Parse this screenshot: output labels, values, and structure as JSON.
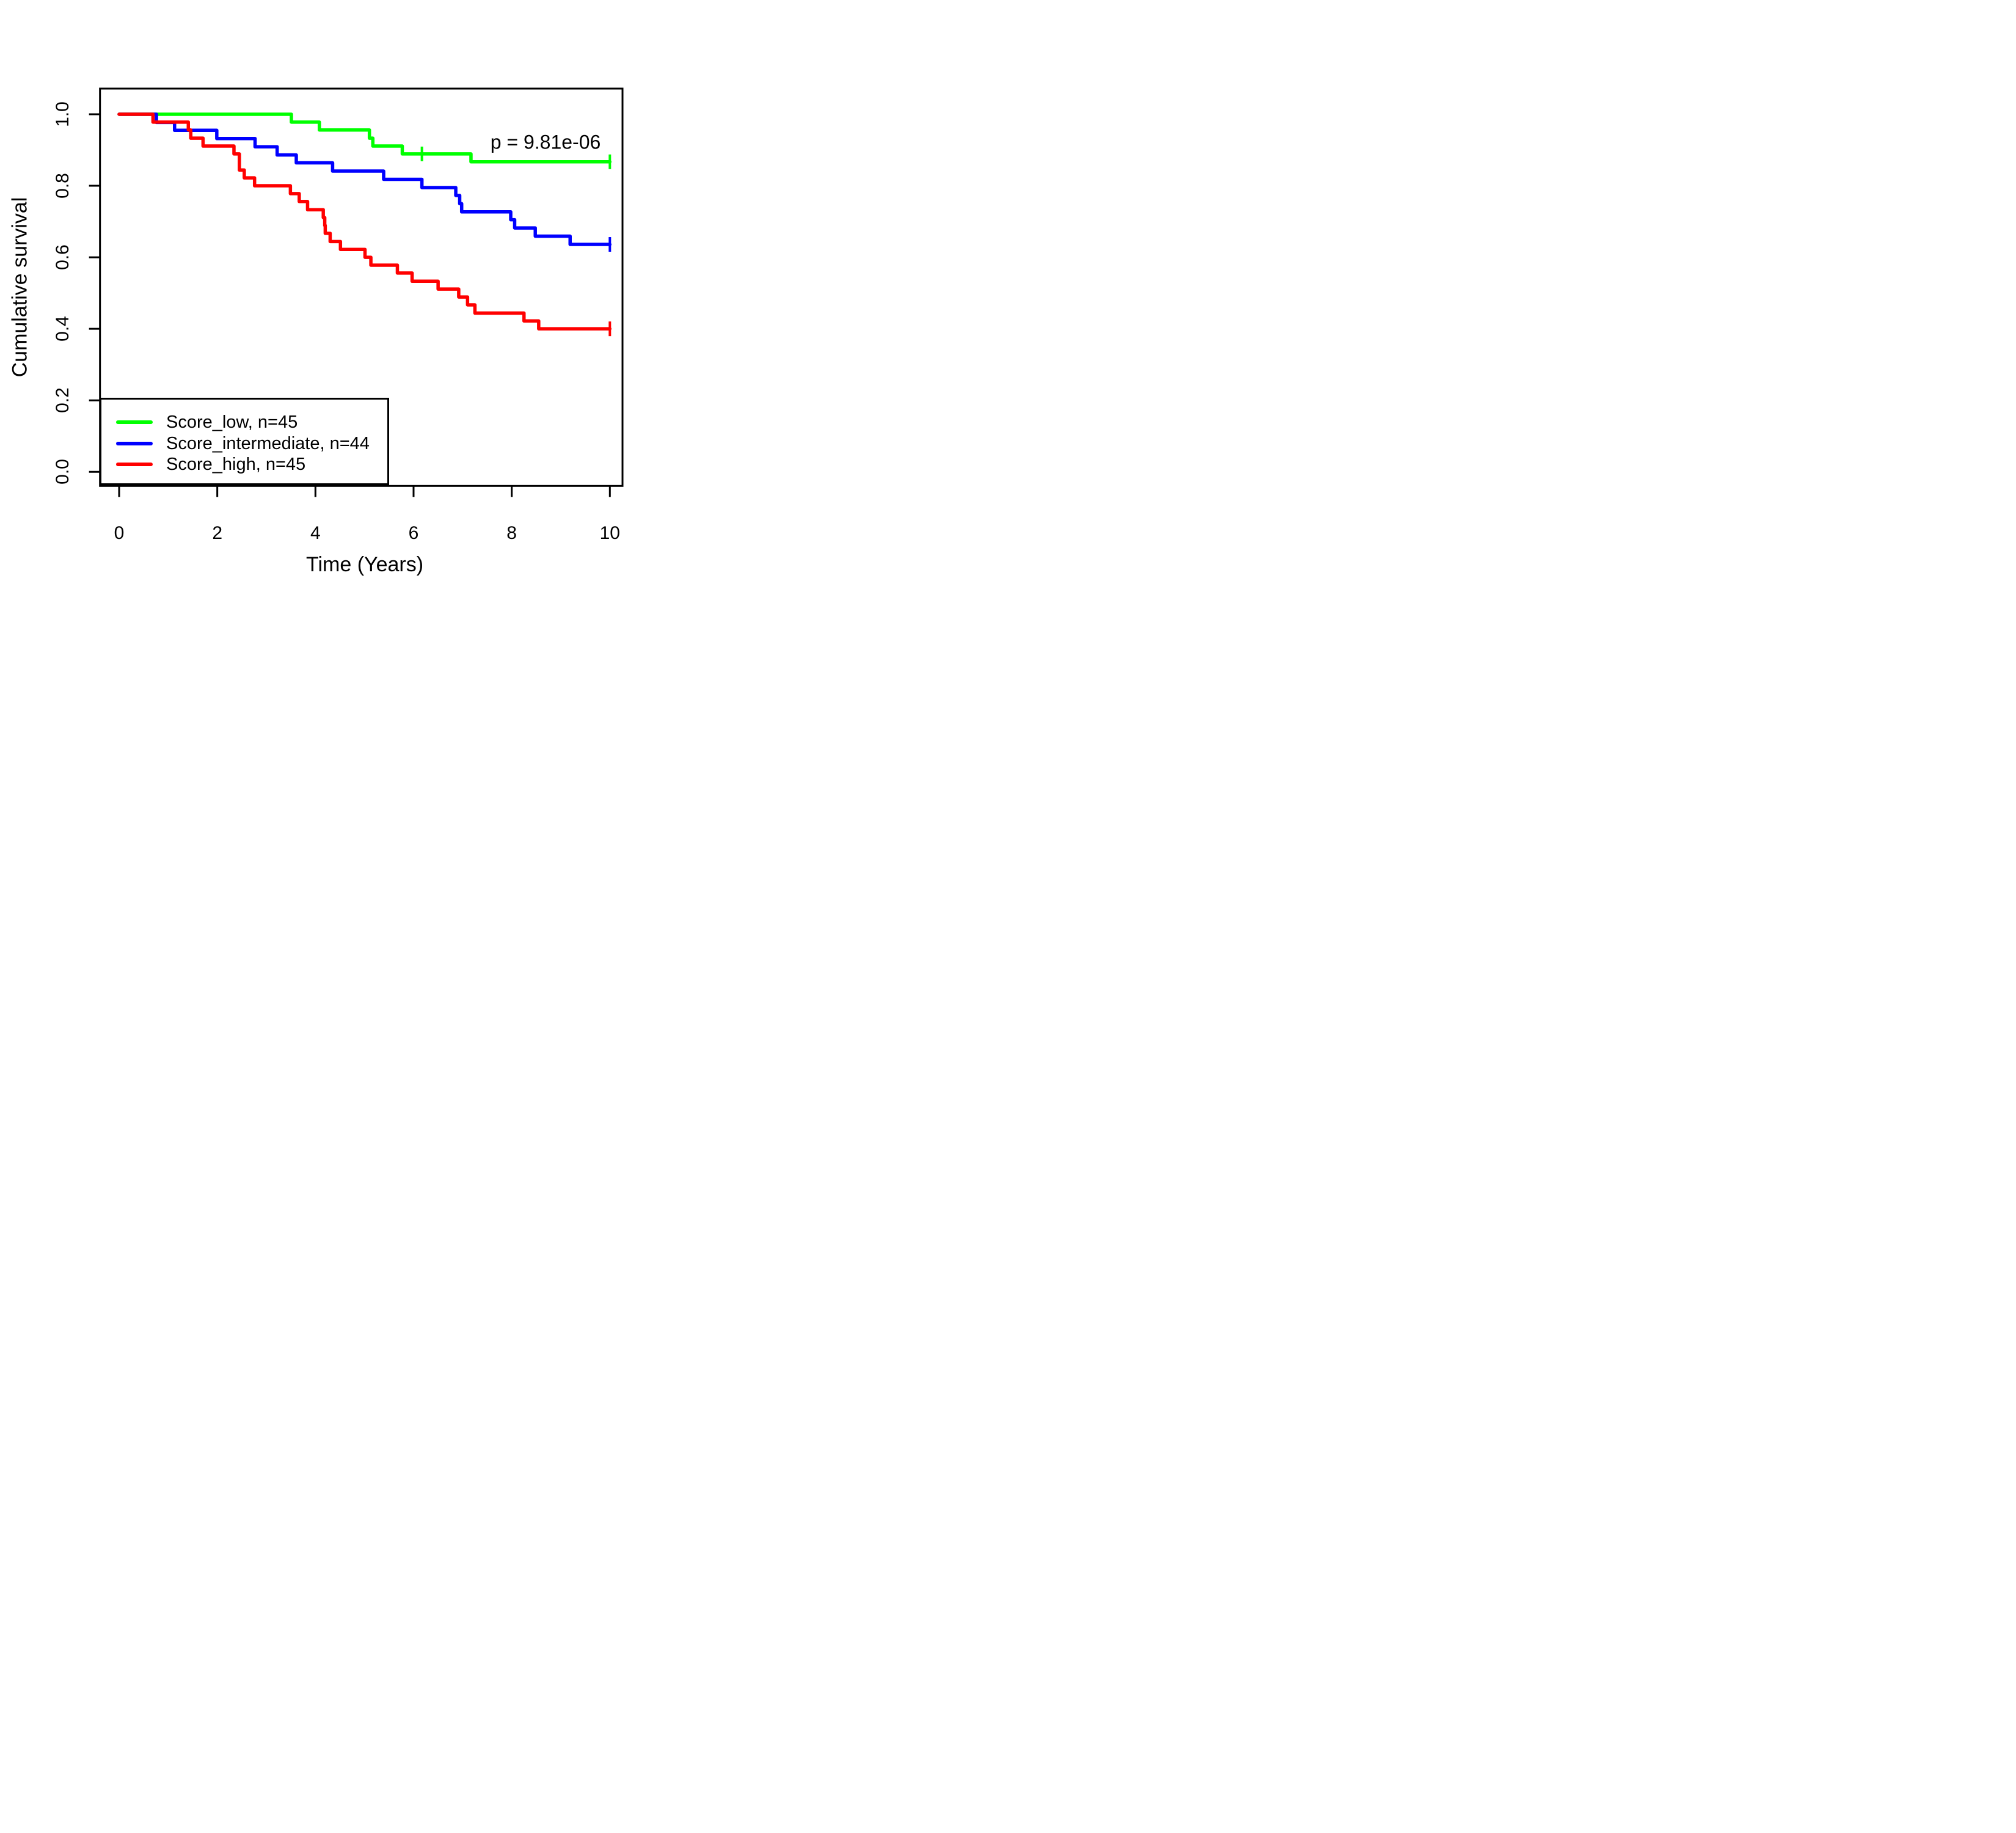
{
  "chart_data": {
    "type": "line",
    "subtype": "kaplan-meier-step",
    "title": "",
    "xlabel": "Time (Years)",
    "ylabel": "Cumulative survival",
    "annotation": "p = 9.81e-06",
    "xlim": [
      0,
      10
    ],
    "ylim": [
      0.0,
      1.0
    ],
    "x_ticks": [
      0,
      2,
      4,
      6,
      8,
      10
    ],
    "x_tick_labels": [
      "0",
      "2",
      "4",
      "6",
      "8",
      "10"
    ],
    "y_ticks": [
      0.0,
      0.2,
      0.4,
      0.6,
      0.8,
      1.0
    ],
    "y_tick_labels": [
      "0.0",
      "0.2",
      "0.4",
      "0.6",
      "0.8",
      "1.0"
    ],
    "grid": false,
    "legend_position": "bottom-left",
    "series": [
      {
        "name": "Score_low, n=45",
        "color": "#00ff00",
        "n": 45,
        "end_time": 10,
        "terminal_tick": true,
        "censor_times": [
          6.17
        ],
        "points": [
          [
            0,
            1.0
          ],
          [
            3.51,
            0.978
          ],
          [
            4.08,
            0.956
          ],
          [
            5.1,
            0.933
          ],
          [
            5.17,
            0.911
          ],
          [
            5.77,
            0.889
          ],
          [
            7.17,
            0.867
          ]
        ]
      },
      {
        "name": "Score_intermediate, n=44",
        "color": "#0000ff",
        "n": 44,
        "end_time": 10,
        "terminal_tick": true,
        "censor_times": [],
        "points": [
          [
            0,
            1.0
          ],
          [
            0.76,
            0.977
          ],
          [
            1.13,
            0.955
          ],
          [
            1.99,
            0.932
          ],
          [
            2.77,
            0.909
          ],
          [
            3.22,
            0.886
          ],
          [
            3.61,
            0.864
          ],
          [
            4.35,
            0.841
          ],
          [
            5.39,
            0.818
          ],
          [
            6.17,
            0.795
          ],
          [
            6.86,
            0.773
          ],
          [
            6.94,
            0.75
          ],
          [
            6.98,
            0.727
          ],
          [
            7.98,
            0.705
          ],
          [
            8.06,
            0.682
          ],
          [
            8.48,
            0.659
          ],
          [
            9.19,
            0.636
          ]
        ]
      },
      {
        "name": "Score_high, n=45",
        "color": "#ff0000",
        "n": 45,
        "end_time": 10,
        "terminal_tick": true,
        "censor_times": [],
        "points": [
          [
            0,
            1.0
          ],
          [
            0.69,
            0.978
          ],
          [
            1.41,
            0.956
          ],
          [
            1.46,
            0.933
          ],
          [
            1.71,
            0.911
          ],
          [
            2.34,
            0.889
          ],
          [
            2.45,
            0.844
          ],
          [
            2.55,
            0.822
          ],
          [
            2.76,
            0.8
          ],
          [
            3.49,
            0.778
          ],
          [
            3.67,
            0.756
          ],
          [
            3.84,
            0.733
          ],
          [
            4.16,
            0.711
          ],
          [
            4.19,
            0.689
          ],
          [
            4.2,
            0.667
          ],
          [
            4.3,
            0.644
          ],
          [
            4.51,
            0.622
          ],
          [
            5.01,
            0.6
          ],
          [
            5.13,
            0.578
          ],
          [
            5.67,
            0.556
          ],
          [
            5.97,
            0.533
          ],
          [
            6.5,
            0.511
          ],
          [
            6.92,
            0.489
          ],
          [
            7.1,
            0.467
          ],
          [
            7.25,
            0.444
          ],
          [
            8.25,
            0.422
          ],
          [
            8.55,
            0.4
          ]
        ]
      }
    ]
  },
  "legend": {
    "items": [
      {
        "label": "Score_low, n=45"
      },
      {
        "label": "Score_intermediate, n=44"
      },
      {
        "label": "Score_high, n=45"
      }
    ]
  }
}
